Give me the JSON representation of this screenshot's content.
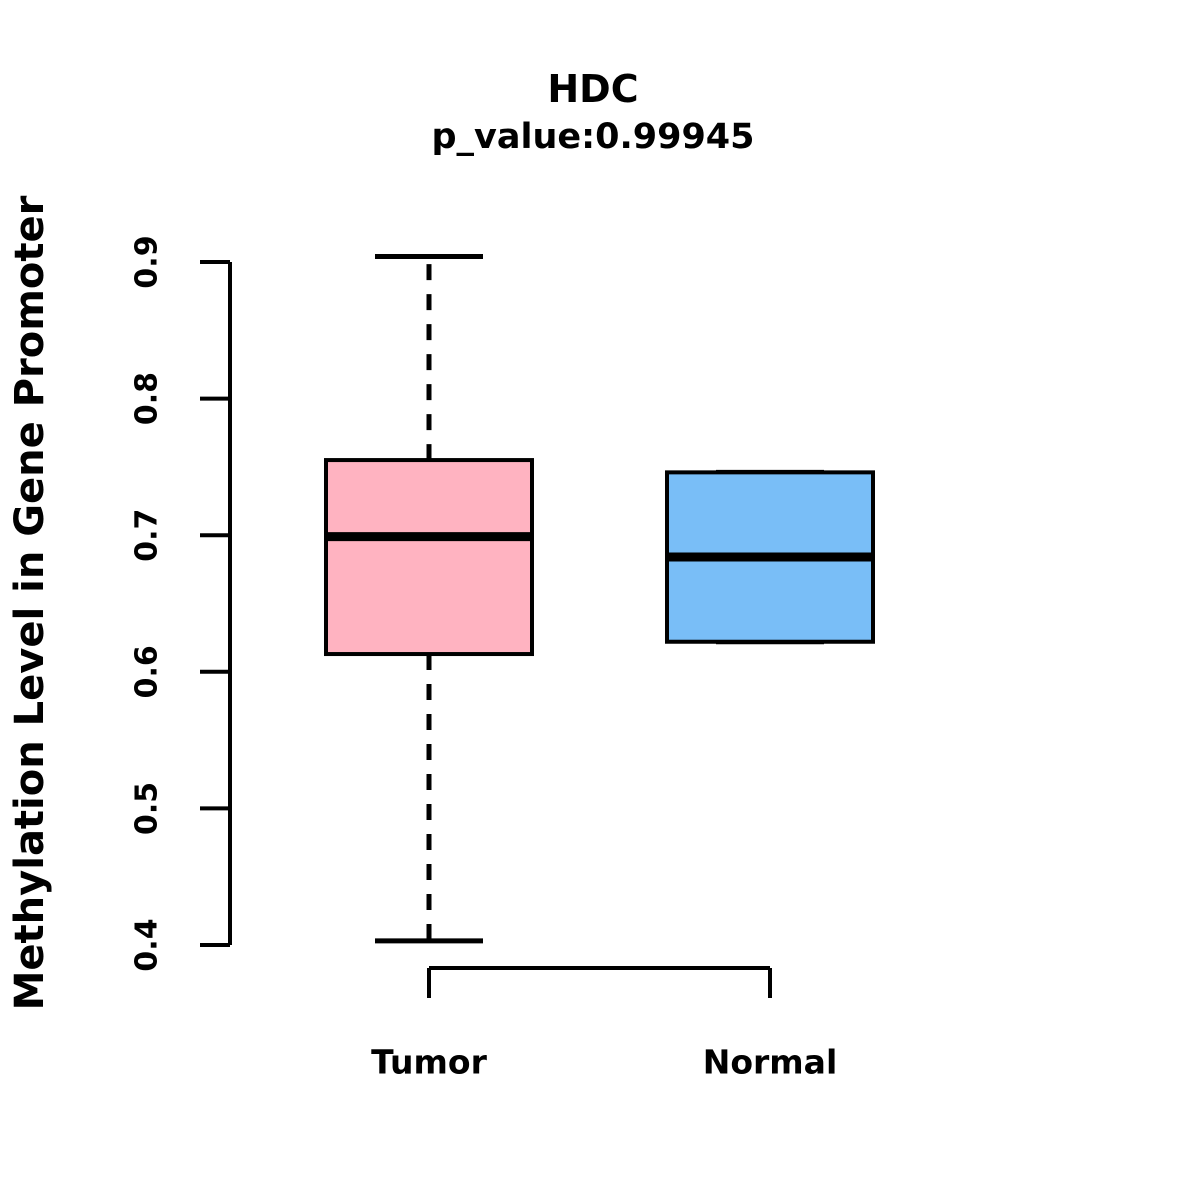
{
  "chart_data": {
    "type": "boxplot",
    "title": "HDC",
    "subtitle": "p_value:0.99945",
    "ylabel": "Methylation Level in Gene Promoter",
    "xlabel": "",
    "ylim": [
      0.4,
      0.9
    ],
    "ytick_labels": [
      "0.4",
      "0.5",
      "0.6",
      "0.7",
      "0.8",
      "0.9"
    ],
    "categories": [
      "Tumor",
      "Normal"
    ],
    "series": [
      {
        "name": "Tumor",
        "whisker_low": 0.403,
        "q1": 0.613,
        "median": 0.699,
        "q3": 0.755,
        "whisker_high": 0.904,
        "outliers": [],
        "fill_color": "#FFB3C1"
      },
      {
        "name": "Normal",
        "whisker_low": 0.622,
        "q1": 0.622,
        "median": 0.684,
        "q3": 0.746,
        "whisker_high": 0.746,
        "outliers": [],
        "fill_color": "#79BEF7"
      }
    ],
    "line_color": "#000000",
    "background_color": "#FFFFFF",
    "grid": false,
    "legend": "none",
    "whisker_style": "dashed"
  }
}
